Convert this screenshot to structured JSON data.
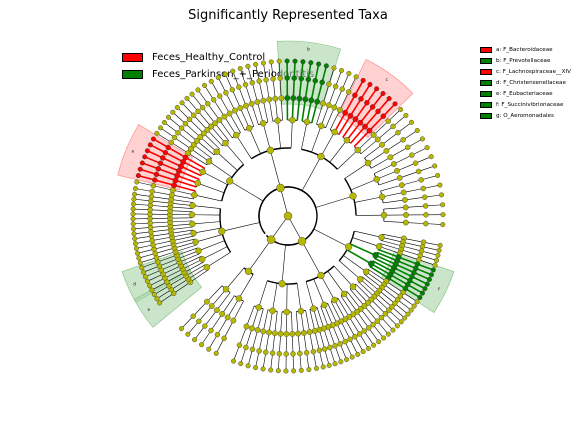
{
  "title": "Significantly Represented Taxa",
  "colors": {
    "healthy": "#ff0000",
    "parkinson": "#008000",
    "neutral": "#b5b800",
    "healthy_shade": "#ffb3b3",
    "parkinson_shade": "#a6d4a6"
  },
  "legend": [
    {
      "label": "Feces_Healthy_Control",
      "color": "#ff0000"
    },
    {
      "label": "Feces_Parkinson_+_Periodontitis",
      "color": "#008000"
    }
  ],
  "clade_legend": [
    {
      "label": "a: F_Bacteroidaceae",
      "color": "#ff0000"
    },
    {
      "label": "b: F_Prevotellaceae",
      "color": "#008000"
    },
    {
      "label": "c: F_Lachnospiraceae__XIV",
      "color": "#ff0000"
    },
    {
      "label": "d: F_Christensenellaceae",
      "color": "#008000"
    },
    {
      "label": "e: F_Eubacteriaceae",
      "color": "#008000"
    },
    {
      "label": "f: F_Succinivibrionaceae",
      "color": "#008000"
    },
    {
      "label": "g: O_Aeromonadales",
      "color": "#008000"
    }
  ],
  "cladogram": {
    "highlighted_clades": [
      {
        "letter": "a",
        "group": "healthy"
      },
      {
        "letter": "b",
        "group": "parkinson"
      },
      {
        "letter": "c",
        "group": "healthy"
      },
      {
        "letter": "d",
        "group": "parkinson"
      },
      {
        "letter": "e",
        "group": "parkinson"
      },
      {
        "letter": "f",
        "group": "parkinson"
      },
      {
        "letter": "g",
        "group": "parkinson"
      }
    ]
  }
}
